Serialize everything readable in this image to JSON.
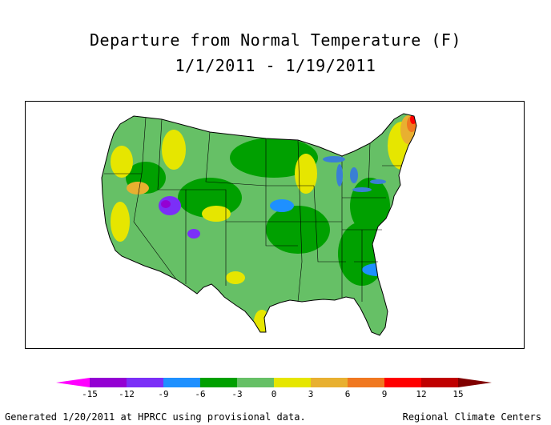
{
  "title_line1": "Departure from Normal Temperature (F)",
  "title_line2": "1/1/2011 - 1/19/2011",
  "legend": {
    "ticks": [
      "-15",
      "-12",
      "-9",
      "-6",
      "-3",
      "0",
      "3",
      "6",
      "9",
      "12",
      "15"
    ],
    "colors": [
      "#ff00ff",
      "#9400d3",
      "#7b2ff7",
      "#1e90ff",
      "#00a000",
      "#66c066",
      "#e6e600",
      "#e8b030",
      "#f07820",
      "#ff0000",
      "#c00000",
      "#800000"
    ]
  },
  "footer_left": "Generated 1/20/2011 at HPRCC using provisional data.",
  "footer_right": "Regional Climate Centers"
}
